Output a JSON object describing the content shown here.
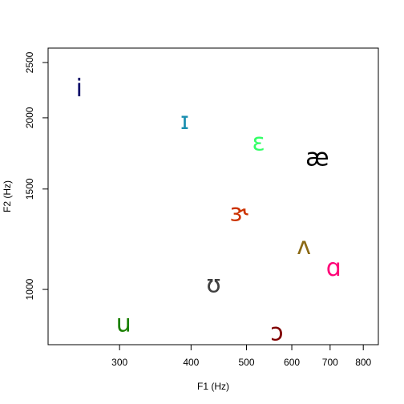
{
  "chart_data": {
    "type": "scatter",
    "title": "",
    "xlabel": "F1 (Hz)",
    "ylabel": "F2 (Hz)",
    "x_scale": "log",
    "y_scale": "log",
    "xlim": [
      225,
      850
    ],
    "ylim": [
      800,
      2650
    ],
    "xticks": [
      300,
      400,
      500,
      600,
      700,
      800
    ],
    "yticks": [
      1000,
      1500,
      2000,
      2500
    ],
    "grid": false,
    "legend": "none",
    "points": [
      {
        "label": "i",
        "x": 255,
        "y": 2250,
        "color": "#000066"
      },
      {
        "label": "ɪ",
        "x": 390,
        "y": 1970,
        "color": "#1a8fb0"
      },
      {
        "label": "ɛ",
        "x": 525,
        "y": 1810,
        "color": "#33ff66"
      },
      {
        "label": "æ",
        "x": 665,
        "y": 1700,
        "color": "#000000"
      },
      {
        "label": "ɝ",
        "x": 485,
        "y": 1360,
        "color": "#cc3300"
      },
      {
        "label": "ʌ",
        "x": 630,
        "y": 1190,
        "color": "#8b6914"
      },
      {
        "label": "ɑ",
        "x": 710,
        "y": 1090,
        "color": "#ff0077"
      },
      {
        "label": "ʊ",
        "x": 438,
        "y": 1020,
        "color": "#404040"
      },
      {
        "label": "u",
        "x": 305,
        "y": 870,
        "color": "#1a8000"
      },
      {
        "label": "ɔ",
        "x": 565,
        "y": 840,
        "color": "#800000"
      }
    ]
  }
}
